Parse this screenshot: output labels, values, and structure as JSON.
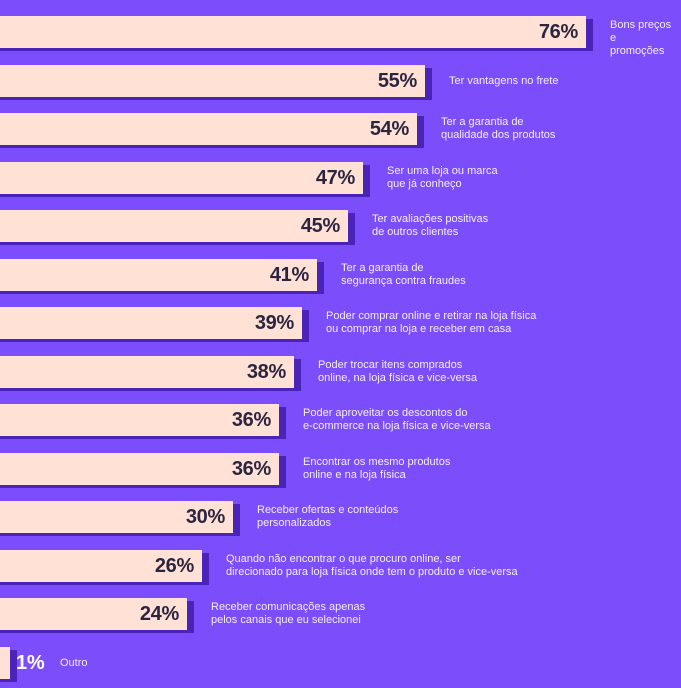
{
  "colors": {
    "background": "#7c4dfa",
    "bar": "#ffe1d6",
    "bar_shadow": "#4a24b8",
    "value_text": "#2b2540",
    "label_text": "#f3eeff"
  },
  "chart_data": {
    "type": "bar",
    "orientation": "horizontal",
    "categories": [
      "Bons preços e\npromoções",
      "Ter vantagens no frete",
      "Ter a garantia de\nqualidade dos produtos",
      "Ser uma loja ou marca\nque já conheço",
      "Ter avaliações positivas\nde outros clientes",
      "Ter a garantia de\nsegurança contra fraudes",
      "Poder comprar online e retirar na loja física\nou comprar na loja e receber em casa",
      "Poder trocar itens comprados\nonline, na loja física e vice-versa",
      "Poder aproveitar os descontos do\ne-commerce na loja física e vice-versa",
      "Encontrar os mesmo produtos\nonline e na loja física",
      "Receber ofertas e conteúdos\npersonalizados",
      "Quando não encontrar o que procuro online, ser\ndirecionado para loja física onde tem o produto e vice-versa",
      "Receber comunicações apenas\npelos canais que eu selecionei",
      "Outro"
    ],
    "values": [
      76,
      55,
      54,
      47,
      45,
      41,
      39,
      38,
      36,
      36,
      30,
      26,
      24,
      1
    ],
    "value_labels": [
      "76%",
      "55%",
      "54%",
      "47%",
      "45%",
      "41%",
      "39%",
      "38%",
      "36%",
      "36%",
      "30%",
      "26%",
      "24%",
      "1%"
    ],
    "xlim": [
      0,
      76
    ],
    "grid": false,
    "legend": "none",
    "title": "",
    "xlabel": "",
    "ylabel": ""
  }
}
